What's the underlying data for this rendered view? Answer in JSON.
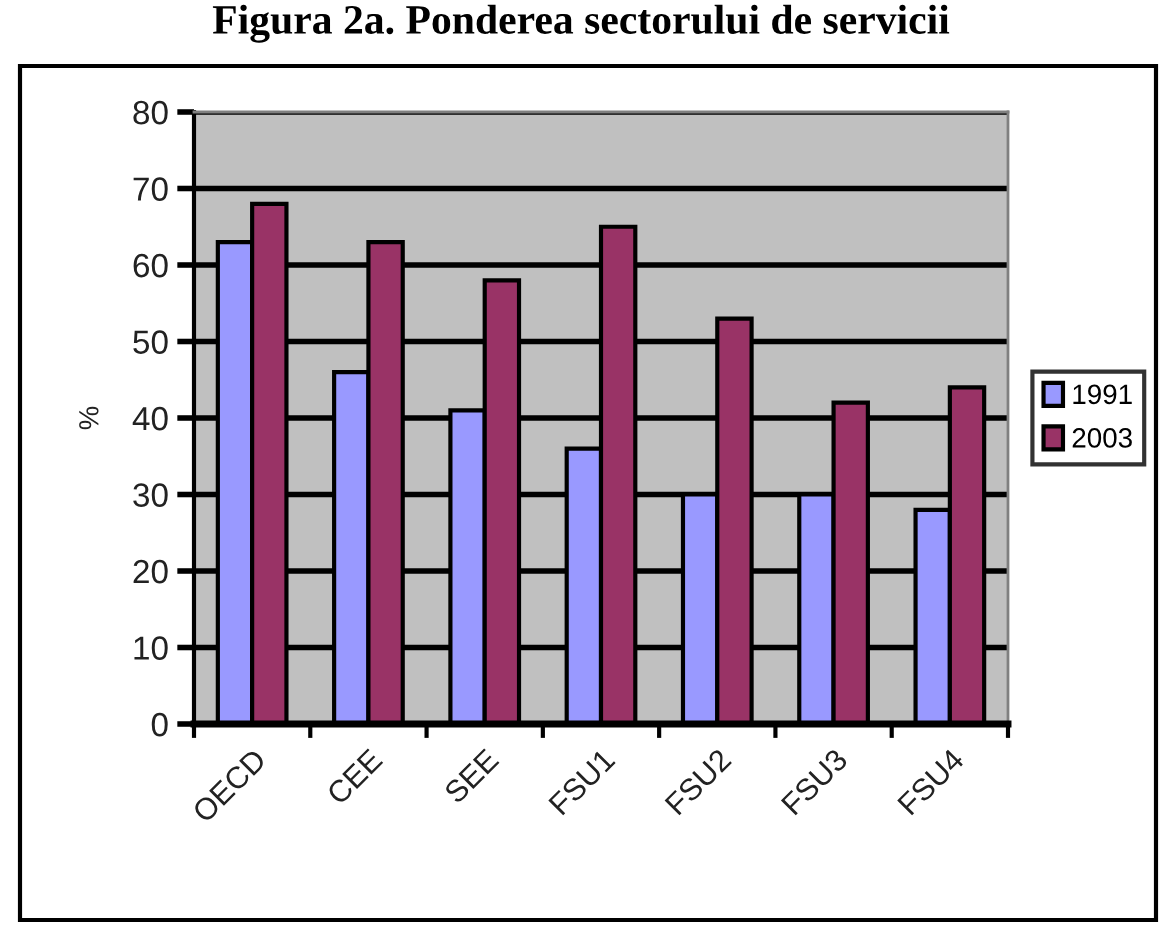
{
  "chart_data": {
    "type": "bar",
    "title": "Figura 2a. Ponderea sectorului de servicii",
    "ylabel": "%",
    "categories": [
      "OECD",
      "CEE",
      "SEE",
      "FSU1",
      "FSU2",
      "FSU3",
      "FSU4"
    ],
    "series": [
      {
        "name": "1991",
        "color": "#9999ff",
        "values": [
          63,
          46,
          41,
          36,
          30,
          30,
          28
        ]
      },
      {
        "name": "2003",
        "color": "#993366",
        "values": [
          68,
          63,
          58,
          65,
          53,
          42,
          44
        ]
      }
    ],
    "ylim": [
      0,
      80
    ],
    "yticks": [
      0,
      10,
      20,
      30,
      40,
      50,
      60,
      70,
      80
    ],
    "grid": "y",
    "legend": "right"
  }
}
